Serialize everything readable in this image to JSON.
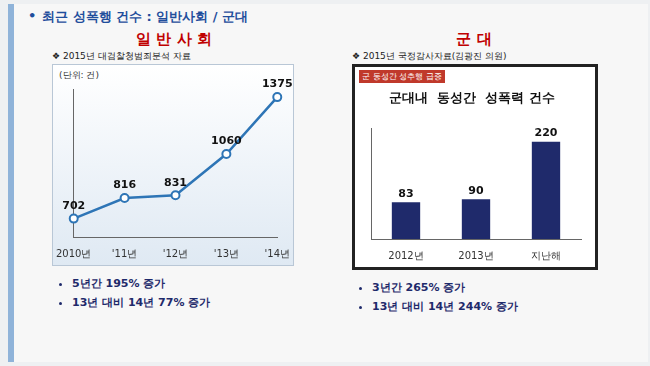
{
  "title": "최근 성폭행 건수 : 일반사회 / 군대",
  "chart_data": [
    {
      "type": "line",
      "heading": "일 반 사 회",
      "subtitle": "❖ 2015년 대검찰청범죄분석 자료",
      "unit_label": "(단위: 건)",
      "categories": [
        "2010년",
        "'11년",
        "'12년",
        "'13년",
        "'14년"
      ],
      "values": [
        702,
        816,
        831,
        1060,
        1375
      ],
      "color": "#2e75b6",
      "ylim": [
        600,
        1420
      ],
      "grid": false,
      "data_labels": true,
      "tick_labels": "x",
      "marker": "circle",
      "notes": [
        "5년간  195% 증가",
        "13년 대비 14년  77% 증가"
      ]
    },
    {
      "type": "bar",
      "heading": "군     대",
      "subtitle": "❖ 2015년 국정감사자료(김광진 의원)",
      "tag": "군 동성간 성추행 급증",
      "title": "군대내  동성간  성폭력 건수",
      "categories": [
        "2012년",
        "2013년",
        "지난해"
      ],
      "values": [
        83,
        90,
        220
      ],
      "color": "#1f2a6b",
      "ylim": [
        0,
        250
      ],
      "grid": false,
      "data_labels": true,
      "tick_labels": "x",
      "notes": [
        "3년간  265% 증가",
        "13년 대비 14년  244% 증가"
      ]
    }
  ]
}
